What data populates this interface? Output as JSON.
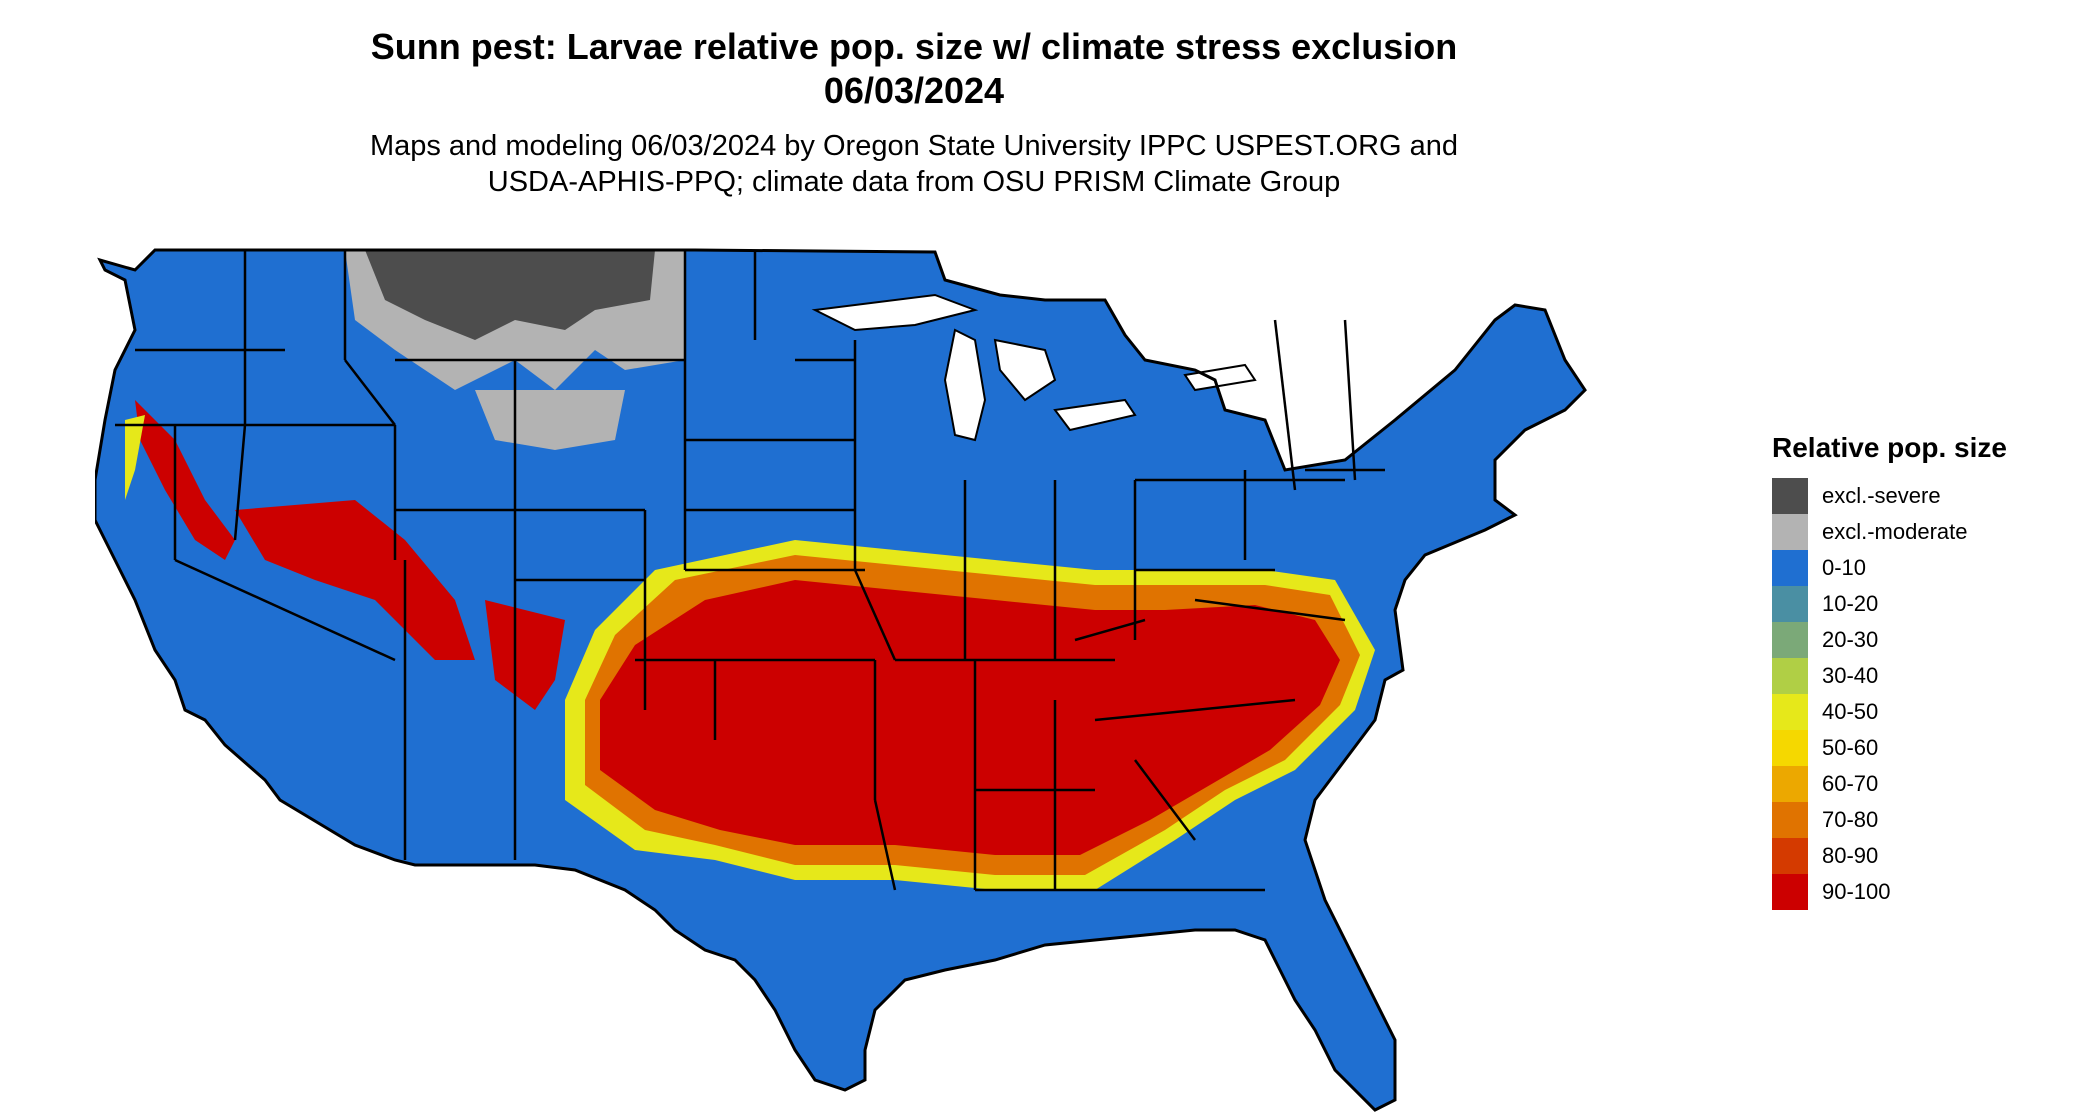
{
  "title": {
    "line1": "Sunn pest: Larvae relative pop. size w/ climate stress exclusion",
    "line2": "06/03/2024"
  },
  "subtitle": {
    "line1": "Maps and modeling 06/03/2024 by Oregon State University IPPC USPEST.ORG and",
    "line2": "USDA-APHIS-PPQ; climate data from OSU PRISM Climate Group"
  },
  "legend": {
    "title": "Relative pop. size",
    "items": [
      {
        "label": "excl.-severe",
        "color": "#4d4d4d"
      },
      {
        "label": "excl.-moderate",
        "color": "#b3b3b3"
      },
      {
        "label": "0-10",
        "color": "#1f6fd1"
      },
      {
        "label": "10-20",
        "color": "#4a8fa3"
      },
      {
        "label": "20-30",
        "color": "#7ba978"
      },
      {
        "label": "30-40",
        "color": "#b0cf45"
      },
      {
        "label": "40-50",
        "color": "#e6e81a"
      },
      {
        "label": "50-60",
        "color": "#f5d800"
      },
      {
        "label": "60-70",
        "color": "#eca800"
      },
      {
        "label": "70-80",
        "color": "#e07300"
      },
      {
        "label": "80-90",
        "color": "#d43a00"
      },
      {
        "label": "90-100",
        "color": "#cc0000"
      }
    ]
  }
}
